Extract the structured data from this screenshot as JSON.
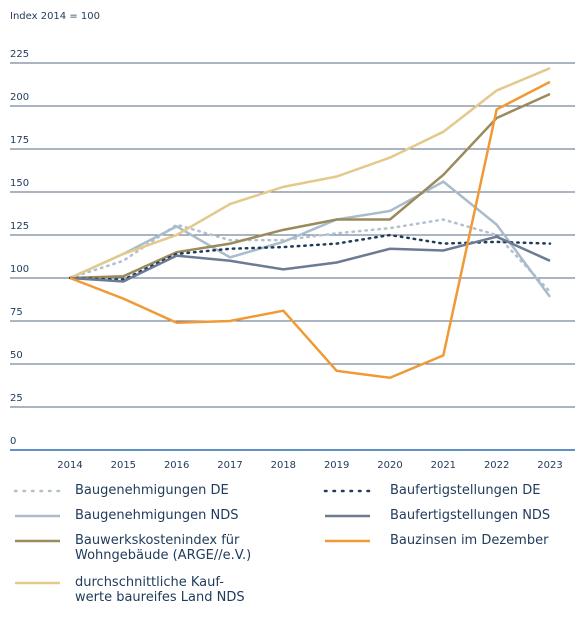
{
  "chart_data": {
    "type": "line",
    "subtitle": "Index 2014 = 100",
    "categories": [
      "2014",
      "2015",
      "2016",
      "2017",
      "2018",
      "2019",
      "2020",
      "2021",
      "2022",
      "2023"
    ],
    "ylim": [
      0,
      225
    ],
    "yticks": [
      0,
      25,
      50,
      75,
      100,
      125,
      150,
      175,
      200,
      225
    ],
    "grid": true,
    "series": [
      {
        "name": "Baugenehmigungen DE",
        "color": "#b3c1cd",
        "dotted": true,
        "values": [
          100,
          110,
          131,
          122,
          122,
          126,
          129,
          134,
          125,
          92
        ]
      },
      {
        "name": "Baugenehmigungen NDS",
        "color": "#a9bccb",
        "dotted": false,
        "values": [
          100,
          114,
          130,
          112,
          121,
          134,
          139,
          156,
          131,
          89
        ]
      },
      {
        "name": "Bauwerkskostenindex für\nWohngebäude (ARGE//e.V.)",
        "color": "#9a8a5c",
        "dotted": false,
        "values": [
          100,
          101,
          115,
          120,
          128,
          134,
          134,
          160,
          193,
          207
        ]
      },
      {
        "name": "durchschnittliche Kauf-\nwerte baureifes Land NDS",
        "color": "#e4c98c",
        "dotted": false,
        "values": [
          100,
          114,
          125,
          143,
          153,
          159,
          170,
          185,
          209,
          222
        ]
      },
      {
        "name": "Baufertigstellungen DE",
        "color": "#1f3a5a",
        "dotted": true,
        "values": [
          100,
          99,
          114,
          117,
          118,
          120,
          125,
          120,
          121,
          120
        ]
      },
      {
        "name": "Baufertigstellungen NDS",
        "color": "#6b7b94",
        "dotted": false,
        "values": [
          100,
          98,
          113,
          110,
          105,
          109,
          117,
          116,
          124,
          110
        ]
      },
      {
        "name": "Bauzinsen im Dezember",
        "color": "#ef9a35",
        "dotted": false,
        "values": [
          100,
          88,
          74,
          75,
          81,
          46,
          42,
          55,
          198,
          214
        ]
      }
    ]
  }
}
